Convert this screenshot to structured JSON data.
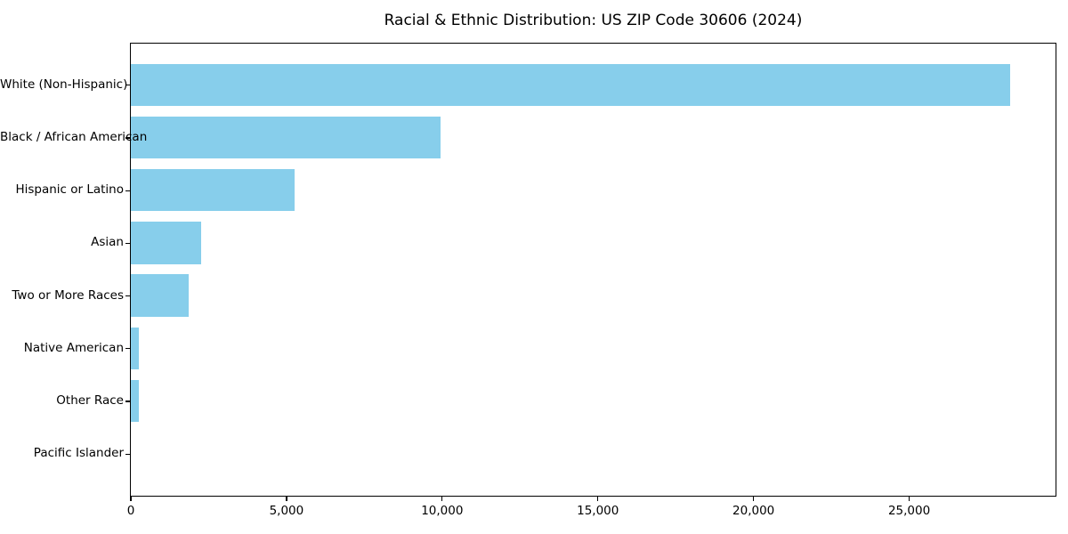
{
  "chart_data": {
    "type": "bar",
    "orientation": "horizontal",
    "title": "Racial & Ethnic Distribution: US ZIP Code 30606 (2024)",
    "categories": [
      "White (Non-Hispanic)",
      "Black / African American",
      "Hispanic or Latino",
      "Asian",
      "Two or More Races",
      "Native American",
      "Other Race",
      "Pacific Islander"
    ],
    "values": [
      28250,
      9970,
      5280,
      2280,
      1860,
      280,
      270,
      0
    ],
    "xlabel": "",
    "ylabel": "",
    "xlim": [
      0,
      29700
    ],
    "x_ticks": [
      0,
      5000,
      10000,
      15000,
      20000,
      25000
    ],
    "x_tick_labels": [
      "0",
      "5,000",
      "10,000",
      "15,000",
      "20,000",
      "25,000"
    ],
    "bar_color": "#87CEEB",
    "background_color": "#ffffff",
    "grid": false,
    "legend": "none"
  }
}
